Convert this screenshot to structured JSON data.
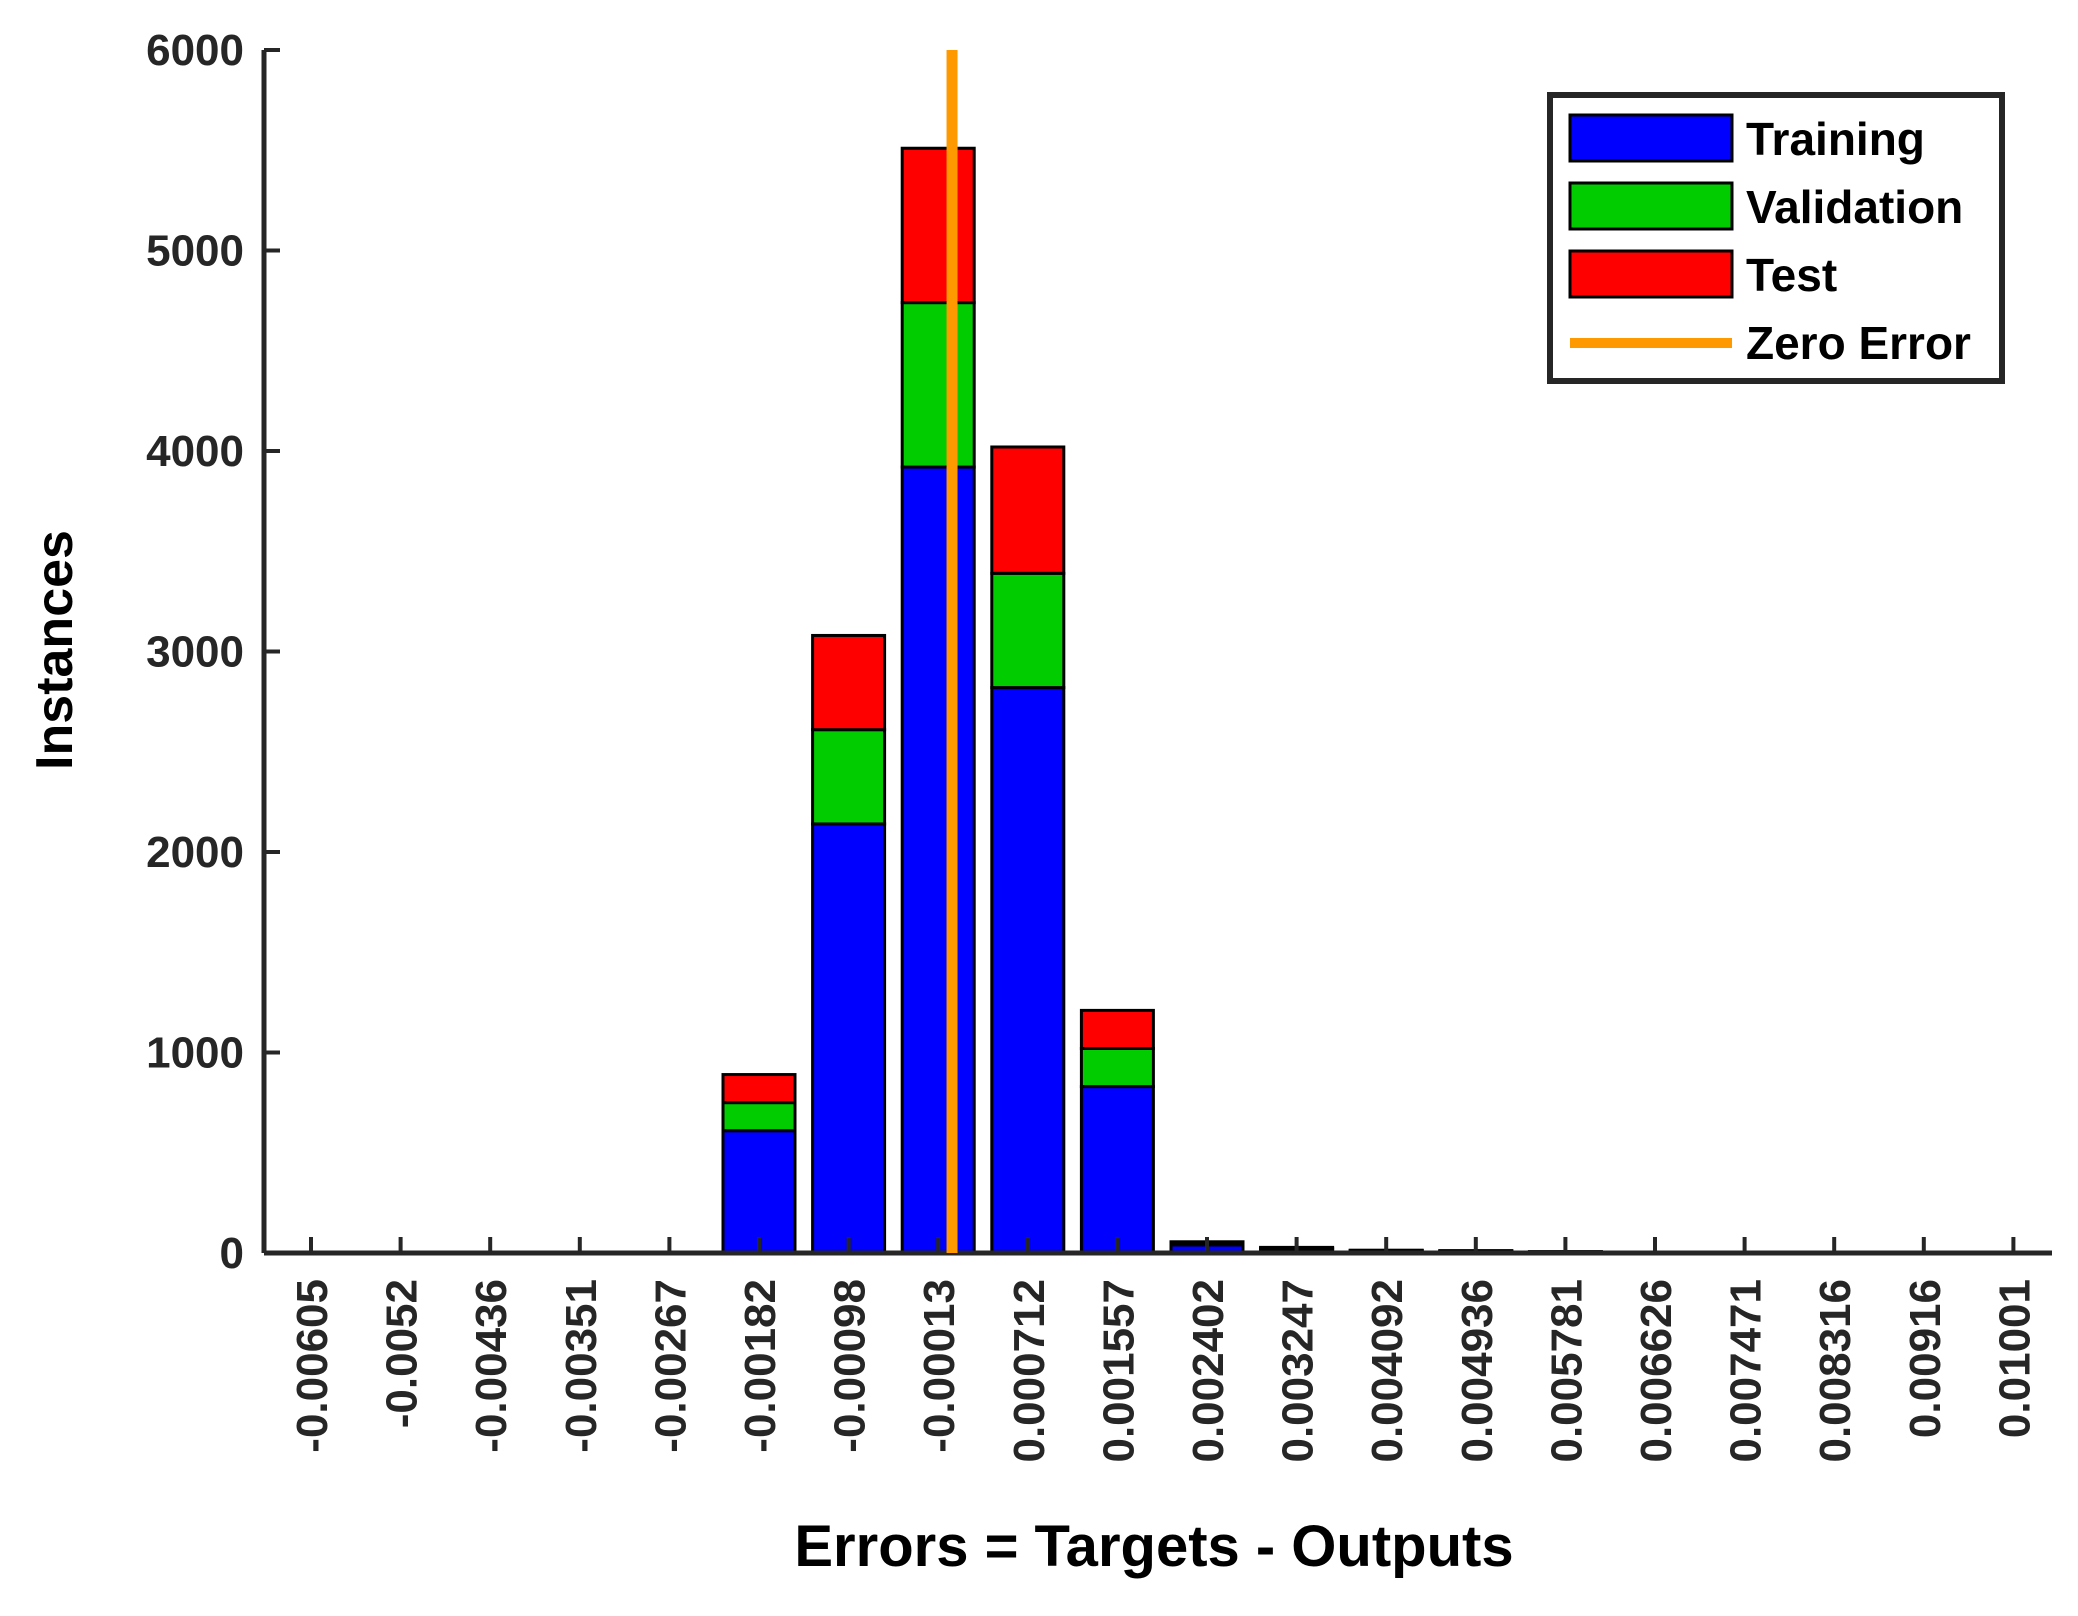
{
  "chart_data": {
    "type": "bar",
    "stacked": true,
    "title": "",
    "xlabel": "Errors = Targets - Outputs",
    "ylabel": "Instances",
    "ylim": [
      0,
      6000
    ],
    "yticks": [
      "0",
      "1000",
      "2000",
      "3000",
      "4000",
      "5000",
      "6000"
    ],
    "categories": [
      "-0.00605",
      "-0.0052",
      "-0.00436",
      "-0.00351",
      "-0.00267",
      "-0.00182",
      "-0.00098",
      "-0.00013",
      "0.000712",
      "0.001557",
      "0.002402",
      "0.003247",
      "0.004092",
      "0.004936",
      "0.005781",
      "0.006626",
      "0.007471",
      "0.008316",
      "0.00916",
      "0.01001"
    ],
    "series": [
      {
        "name": "Training",
        "color": "#0000ff",
        "values": [
          0,
          0,
          0,
          0,
          0,
          610,
          2140,
          3920,
          2820,
          830,
          40,
          20,
          10,
          8,
          5,
          0,
          0,
          0,
          0,
          0
        ]
      },
      {
        "name": "Validation",
        "color": "#00cc00",
        "values": [
          0,
          0,
          0,
          0,
          0,
          140,
          470,
          820,
          570,
          190,
          8,
          4,
          2,
          2,
          1,
          0,
          0,
          0,
          0,
          0
        ]
      },
      {
        "name": "Test",
        "color": "#ff0000",
        "values": [
          0,
          0,
          0,
          0,
          0,
          140,
          470,
          770,
          630,
          190,
          8,
          4,
          2,
          2,
          1,
          0,
          0,
          0,
          0,
          0
        ]
      }
    ],
    "reference_line": {
      "name": "Zero Error",
      "color": "#ff9900",
      "x": 0
    },
    "legend": {
      "position": "top-right",
      "entries": [
        "Training",
        "Validation",
        "Test",
        "Zero Error"
      ]
    },
    "grid": false
  }
}
